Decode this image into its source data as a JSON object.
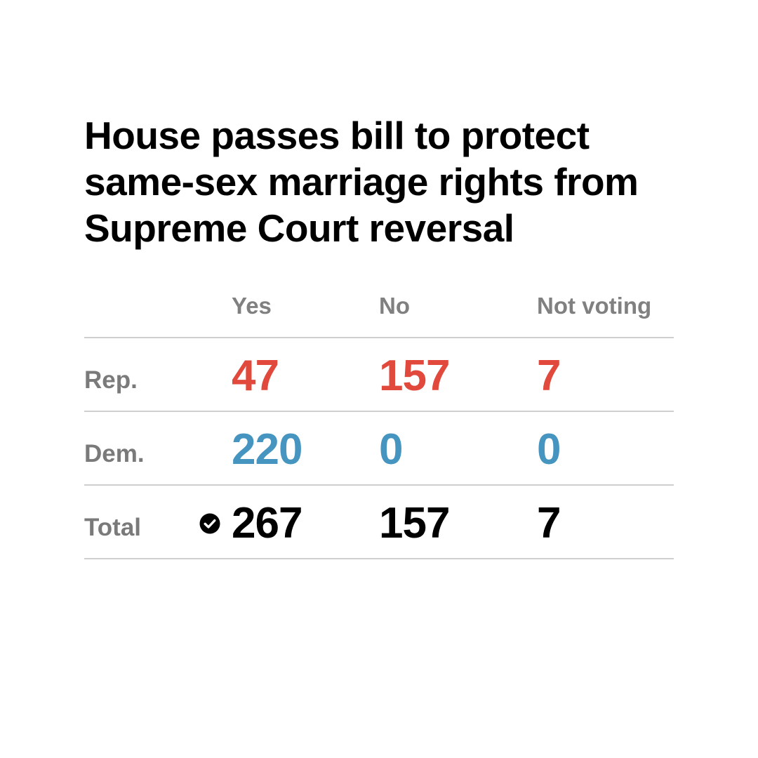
{
  "title": "House passes bill to protect same-sex marriage rights from Supreme Court reversal",
  "colors": {
    "rep": "#e0493b",
    "dem": "#4695c0",
    "total": "#000000",
    "label": "#7a7a7a",
    "rule": "#cfcfcf"
  },
  "chart_data": {
    "type": "table",
    "title": "House passes bill to protect same-sex marriage rights from Supreme Court reversal",
    "columns": [
      "Yes",
      "No",
      "Not voting"
    ],
    "rows": [
      {
        "label": "Rep.",
        "party": "rep",
        "yes": "47",
        "no": "157",
        "not_voting": "7"
      },
      {
        "label": "Dem.",
        "party": "dem",
        "yes": "220",
        "no": "0",
        "not_voting": "0"
      },
      {
        "label": "Total",
        "party": "total",
        "yes": "267",
        "no": "157",
        "not_voting": "7",
        "winner": "yes",
        "winner_icon": "check-circle-icon"
      }
    ]
  }
}
